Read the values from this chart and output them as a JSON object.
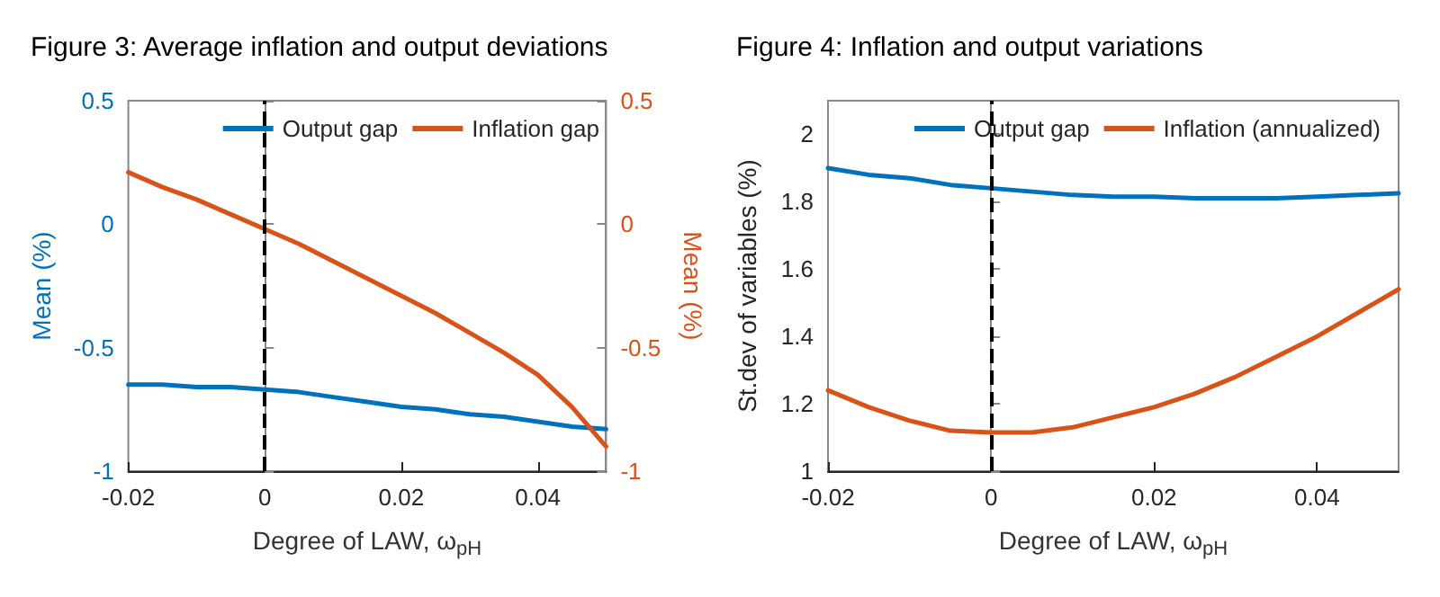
{
  "chart_data": [
    {
      "type": "line",
      "title": "Figure 3: Average inflation and output deviations",
      "xlabel": "Degree of LAW, ω$_{pH}$",
      "ylabel": "Mean (%)",
      "y2label": "Mean (%)",
      "xlim": [
        -0.02,
        0.05
      ],
      "xticks": [
        -0.02,
        0,
        0.02,
        0.04
      ],
      "ylim": [
        -1,
        0.5
      ],
      "yticks": [
        -1,
        -0.5,
        0,
        0.5
      ],
      "y2lim": [
        -1,
        0.5
      ],
      "y2ticks": [
        -1,
        -0.5,
        0,
        0.5
      ],
      "x": [
        -0.02,
        -0.015,
        -0.01,
        -0.005,
        0,
        0.005,
        0.01,
        0.015,
        0.02,
        0.025,
        0.03,
        0.035,
        0.04,
        0.045,
        0.05
      ],
      "series": [
        {
          "name": "Output gap",
          "color": "#0072bd",
          "values": [
            -0.65,
            -0.65,
            -0.66,
            -0.66,
            -0.67,
            -0.68,
            -0.7,
            -0.72,
            -0.74,
            -0.75,
            -0.77,
            -0.78,
            -0.8,
            -0.82,
            -0.83
          ]
        },
        {
          "name": "Inflation gap",
          "color": "#d95319",
          "axis": "y2",
          "values": [
            0.21,
            0.15,
            0.1,
            0.04,
            -0.02,
            -0.08,
            -0.15,
            -0.22,
            -0.29,
            -0.36,
            -0.44,
            -0.52,
            -0.61,
            -0.74,
            -0.9
          ]
        }
      ],
      "ref_lines": [
        {
          "axis": "x",
          "value": 0,
          "color": "#000000",
          "line_style": "dashed"
        }
      ],
      "legend": "top right",
      "grid": false,
      "marker": "none",
      "line_style": "solid"
    },
    {
      "type": "line",
      "title": "Figure 4: Inflation and output variations",
      "xlabel": "Degree of LAW, ω$_{pH}$",
      "ylabel": "St.dev of variables (%)",
      "xlim": [
        -0.02,
        0.05
      ],
      "xticks": [
        -0.02,
        0,
        0.02,
        0.04
      ],
      "ylim": [
        1,
        2.1
      ],
      "yticks": [
        1,
        1.2,
        1.4,
        1.6,
        1.8,
        2
      ],
      "x": [
        -0.02,
        -0.015,
        -0.01,
        -0.005,
        0,
        0.005,
        0.01,
        0.015,
        0.02,
        0.025,
        0.03,
        0.035,
        0.04,
        0.045,
        0.05
      ],
      "series": [
        {
          "name": "Output gap",
          "color": "#0072bd",
          "values": [
            1.9,
            1.88,
            1.87,
            1.85,
            1.84,
            1.83,
            1.82,
            1.815,
            1.815,
            1.81,
            1.81,
            1.81,
            1.815,
            1.82,
            1.825
          ]
        },
        {
          "name": "Inflation (annualized)",
          "color": "#d95319",
          "values": [
            1.24,
            1.19,
            1.15,
            1.12,
            1.115,
            1.115,
            1.13,
            1.16,
            1.19,
            1.23,
            1.28,
            1.34,
            1.4,
            1.47,
            1.54
          ]
        }
      ],
      "ref_lines": [
        {
          "axis": "x",
          "value": 0,
          "color": "#000000",
          "line_style": "dashed"
        }
      ],
      "legend": "top right",
      "grid": false,
      "marker": "none",
      "line_style": "solid"
    }
  ]
}
